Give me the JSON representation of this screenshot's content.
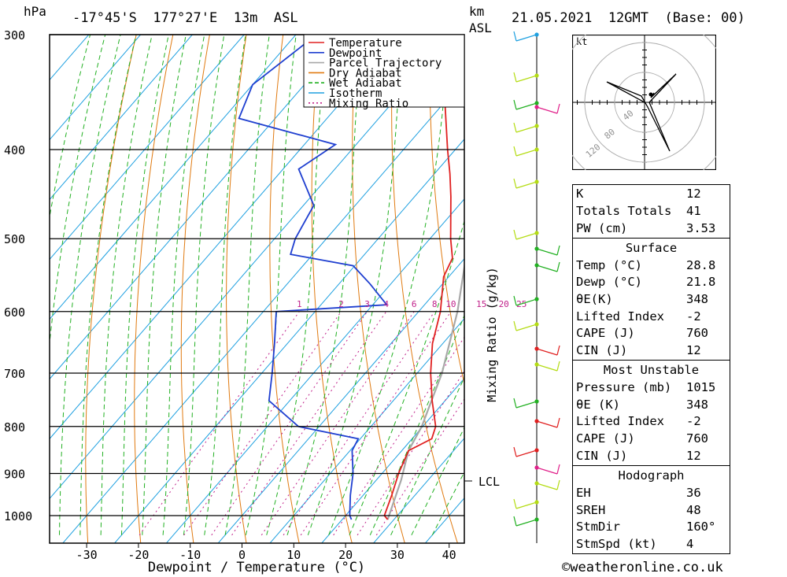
{
  "header": {
    "unit_left": "hPa",
    "location": "-17°45'S  177°27'E  13m  ASL",
    "unit_km": "km",
    "unit_asl": "ASL",
    "datetime": "21.05.2021  12GMT  (Base: 00)"
  },
  "footer": {
    "credit": "©weatheronline.co.uk"
  },
  "chart_data": {
    "type": "skew-t",
    "title": "-17°45'S  177°27'E  13m  ASL",
    "xlabel": "Dewpoint / Temperature (°C)",
    "ylabel": "hPa",
    "xlim": [
      -38,
      43
    ],
    "ylim": [
      1050,
      300
    ],
    "pressure_ticks": [
      300,
      400,
      500,
      600,
      700,
      800,
      900,
      1000
    ],
    "temp_ticks": [
      -30,
      -20,
      -10,
      0,
      10,
      20,
      30,
      40
    ],
    "mixing_ratio_label": "Mixing Ratio (g/kg)",
    "mixing_ratio_values": [
      1,
      2,
      3,
      4,
      6,
      8,
      10,
      15,
      20,
      25
    ],
    "lcl_label": "LCL",
    "lcl_pressure": 915,
    "legend": [
      {
        "name": "Temperature",
        "color": "#e02020"
      },
      {
        "name": "Dewpoint",
        "color": "#1f3fd0"
      },
      {
        "name": "Parcel Trajectory",
        "color": "#a8a8a8"
      },
      {
        "name": "Dry Adiabat",
        "color": "#e07a10"
      },
      {
        "name": "Wet Adiabat",
        "color": "#22b022"
      },
      {
        "name": "Isotherm",
        "color": "#1ea0e0"
      },
      {
        "name": "Mixing Ratio",
        "color": "#c0208a"
      }
    ],
    "temperature": [
      [
        1010,
        28.8
      ],
      [
        1000,
        27.5
      ],
      [
        950,
        25.5
      ],
      [
        900,
        23.2
      ],
      [
        850,
        21.3
      ],
      [
        825,
        23.8
      ],
      [
        800,
        22.5
      ],
      [
        750,
        17.5
      ],
      [
        700,
        12.6
      ],
      [
        650,
        8.0
      ],
      [
        600,
        4.2
      ],
      [
        550,
        -1.0
      ],
      [
        525,
        -2.4
      ],
      [
        500,
        -6.0
      ],
      [
        450,
        -13.0
      ],
      [
        425,
        -17.0
      ],
      [
        400,
        -21.5
      ],
      [
        350,
        -31.0
      ],
      [
        300,
        -40.0
      ]
    ],
    "dewpoint": [
      [
        1010,
        21.8
      ],
      [
        1000,
        20.8
      ],
      [
        950,
        17.5
      ],
      [
        900,
        14.4
      ],
      [
        850,
        10.4
      ],
      [
        825,
        9.6
      ],
      [
        800,
        -4.0
      ],
      [
        750,
        -14.0
      ],
      [
        700,
        -18.0
      ],
      [
        650,
        -22.5
      ],
      [
        600,
        -27.5
      ],
      [
        590,
        -7.3
      ],
      [
        560,
        -14.0
      ],
      [
        535,
        -20.3
      ],
      [
        520,
        -34.3
      ],
      [
        500,
        -36.0
      ],
      [
        460,
        -38.0
      ],
      [
        420,
        -47.0
      ],
      [
        395,
        -44.0
      ],
      [
        370,
        -67.0
      ],
      [
        340,
        -70.0
      ],
      [
        300,
        -66.0
      ]
    ],
    "parcel": [
      [
        1010,
        28.8
      ],
      [
        915,
        24.8
      ],
      [
        850,
        21.3
      ],
      [
        800,
        19.8
      ],
      [
        700,
        14.8
      ],
      [
        600,
        7.5
      ],
      [
        500,
        -2.5
      ],
      [
        400,
        -16.0
      ],
      [
        350,
        -25.0
      ]
    ]
  },
  "hodograph": {
    "unit": "kt",
    "rings": [
      {
        "label": "40",
        "kt": 40
      },
      {
        "label": "80",
        "kt": 80
      },
      {
        "label": "120",
        "kt": 120
      }
    ]
  },
  "indices": {
    "rows": [
      {
        "k": "K",
        "v": "12"
      },
      {
        "k": "Totals Totals",
        "v": "41"
      },
      {
        "k": "PW (cm)",
        "v": "3.53"
      }
    ],
    "surface": {
      "title": "Surface",
      "rows": [
        {
          "k": "Temp (°C)",
          "v": "28.8"
        },
        {
          "k": "Dewp (°C)",
          "v": "21.8"
        },
        {
          "k": "θE(K)",
          "v": "348"
        },
        {
          "k": "Lifted Index",
          "v": "-2"
        },
        {
          "k": "CAPE (J)",
          "v": "760"
        },
        {
          "k": "CIN (J)",
          "v": "12"
        }
      ]
    },
    "most_unstable": {
      "title": "Most Unstable",
      "rows": [
        {
          "k": "Pressure (mb)",
          "v": "1015"
        },
        {
          "k": "θE (K)",
          "v": "348"
        },
        {
          "k": "Lifted Index",
          "v": "-2"
        },
        {
          "k": "CAPE (J)",
          "v": "760"
        },
        {
          "k": "CIN (J)",
          "v": "12"
        }
      ]
    },
    "hodograph": {
      "title": "Hodograph",
      "rows": [
        {
          "k": "EH",
          "v": "36"
        },
        {
          "k": "SREH",
          "v": "48"
        },
        {
          "k": "StmDir",
          "v": "160°"
        },
        {
          "k": "StmSpd (kt)",
          "v": "4"
        }
      ]
    }
  }
}
